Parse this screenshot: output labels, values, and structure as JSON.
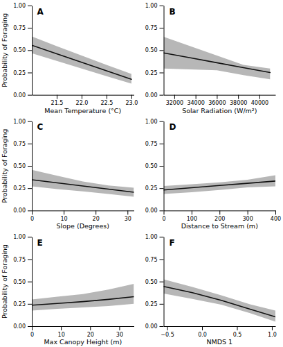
{
  "chart_data": [
    {
      "type": "line",
      "title": "A",
      "x_label": "Mean Temperature (°C)",
      "y_label": "Probability of Foraging",
      "x": [
        21.0,
        21.5,
        22.0,
        22.5,
        23.0
      ],
      "series": [
        {
          "values": [
            0.555,
            0.46,
            0.365,
            0.27,
            0.175
          ],
          "ci_upper": [
            0.655,
            0.545,
            0.44,
            0.335,
            0.235
          ],
          "ci_lower": [
            0.465,
            0.38,
            0.295,
            0.21,
            0.125
          ],
          "color": "#111111"
        }
      ],
      "xlim": [
        21.0,
        23.05
      ],
      "xticks": [
        21.5,
        {
          "value": 22.0,
          "label": "22.0"
        },
        22.5,
        {
          "value": 23.0,
          "label": "23.0"
        }
      ],
      "ylim": [
        0.0,
        1.0
      ],
      "yticks": [
        {
          "value": 0.0,
          "label": "0.00"
        },
        {
          "value": 0.25,
          "label": "0.25"
        },
        {
          "value": 0.5,
          "label": "0.50"
        },
        {
          "value": 0.75,
          "label": "0.75"
        },
        {
          "value": 1.0,
          "label": "1.00"
        }
      ]
    },
    {
      "type": "line",
      "title": "B",
      "x_label": "Solar Radiation (W/m²)",
      "x": [
        31000,
        33500,
        36000,
        38500,
        41000
      ],
      "series": [
        {
          "values": [
            0.47,
            0.415,
            0.36,
            0.305,
            0.25
          ],
          "ci_upper": [
            0.65,
            0.545,
            0.44,
            0.335,
            0.295
          ],
          "ci_lower": [
            0.295,
            0.285,
            0.275,
            0.22,
            0.175
          ],
          "color": "#111111"
        }
      ],
      "xlim": [
        31000,
        41500
      ],
      "xticks": [
        32000,
        34000,
        36000,
        38000,
        40000
      ],
      "ylim": [
        0.0,
        1.0
      ],
      "yticks": [
        {
          "value": 0.0,
          "label": "0.00"
        },
        {
          "value": 0.25,
          "label": "0.25"
        },
        {
          "value": 0.5,
          "label": "0.50"
        },
        {
          "value": 0.75,
          "label": "0.75"
        },
        {
          "value": 1.0,
          "label": "1.00"
        }
      ]
    },
    {
      "type": "line",
      "title": "C",
      "x_label": "Slope (Degrees)",
      "y_label": "Probability of Foraging",
      "x": [
        0,
        8,
        16,
        24,
        32
      ],
      "series": [
        {
          "values": [
            0.345,
            0.31,
            0.275,
            0.24,
            0.205
          ],
          "ci_upper": [
            0.455,
            0.39,
            0.325,
            0.28,
            0.255
          ],
          "ci_lower": [
            0.27,
            0.24,
            0.215,
            0.185,
            0.155
          ],
          "color": "#111111"
        }
      ],
      "xlim": [
        0,
        32
      ],
      "xticks": [
        0,
        10,
        20,
        30
      ],
      "ylim": [
        0.0,
        1.0
      ],
      "yticks": [
        {
          "value": 0.0,
          "label": "0.00"
        },
        {
          "value": 0.25,
          "label": "0.25"
        },
        {
          "value": 0.5,
          "label": "0.50"
        },
        {
          "value": 0.75,
          "label": "0.75"
        },
        {
          "value": 1.0,
          "label": "1.00"
        }
      ]
    },
    {
      "type": "line",
      "title": "D",
      "x_label": "Distance to Stream (m)",
      "x": [
        0,
        100,
        200,
        300,
        400
      ],
      "series": [
        {
          "values": [
            0.23,
            0.255,
            0.28,
            0.305,
            0.33
          ],
          "ci_upper": [
            0.275,
            0.295,
            0.315,
            0.345,
            0.395
          ],
          "ci_lower": [
            0.185,
            0.205,
            0.23,
            0.26,
            0.27
          ],
          "color": "#111111"
        }
      ],
      "xlim": [
        0,
        400
      ],
      "xticks": [
        0,
        100,
        200,
        300,
        400
      ],
      "ylim": [
        0.0,
        1.0
      ],
      "yticks": [
        {
          "value": 0.0,
          "label": "0.00"
        },
        {
          "value": 0.25,
          "label": "0.25"
        },
        {
          "value": 0.5,
          "label": "0.50"
        },
        {
          "value": 0.75,
          "label": "0.75"
        },
        {
          "value": 1.0,
          "label": "1.00"
        }
      ]
    },
    {
      "type": "line",
      "title": "E",
      "x_label": "Max Canopy Height (m)",
      "y_label": "Probability of Foraging",
      "x": [
        0,
        8.75,
        17.5,
        26.25,
        35
      ],
      "series": [
        {
          "values": [
            0.235,
            0.255,
            0.275,
            0.3,
            0.33
          ],
          "ci_upper": [
            0.3,
            0.33,
            0.36,
            0.41,
            0.475
          ],
          "ci_lower": [
            0.175,
            0.195,
            0.21,
            0.225,
            0.25
          ],
          "color": "#111111"
        }
      ],
      "xlim": [
        0,
        35
      ],
      "xticks": [
        0,
        10,
        20,
        30
      ],
      "ylim": [
        0.0,
        1.0
      ],
      "yticks": [
        {
          "value": 0.0,
          "label": "0.00"
        },
        {
          "value": 0.25,
          "label": "0.25"
        },
        {
          "value": 0.5,
          "label": "0.50"
        },
        {
          "value": 0.75,
          "label": "0.75"
        },
        {
          "value": 1.0,
          "label": "1.00"
        }
      ]
    },
    {
      "type": "line",
      "title": "F",
      "x_label": "NMDS 1",
      "x": [
        -0.55,
        -0.1375,
        0.275,
        0.6875,
        1.05
      ],
      "series": [
        {
          "values": [
            0.445,
            0.375,
            0.29,
            0.19,
            0.105
          ],
          "ci_upper": [
            0.525,
            0.44,
            0.345,
            0.245,
            0.175
          ],
          "ci_lower": [
            0.365,
            0.305,
            0.24,
            0.145,
            0.05
          ],
          "color": "#111111"
        }
      ],
      "xlim": [
        -0.55,
        1.05
      ],
      "xticks": [
        {
          "value": -0.5,
          "label": "−0.5"
        },
        {
          "value": 0.0,
          "label": "0.0"
        },
        0.5,
        {
          "value": 1.0,
          "label": "1.0"
        }
      ],
      "ylim": [
        0.0,
        1.0
      ],
      "yticks": [
        {
          "value": 0.0,
          "label": "0.00"
        },
        {
          "value": 0.25,
          "label": "0.25"
        },
        {
          "value": 0.5,
          "label": "0.50"
        },
        {
          "value": 0.75,
          "label": "0.75"
        },
        {
          "value": 1.0,
          "label": "1.00"
        }
      ]
    }
  ]
}
